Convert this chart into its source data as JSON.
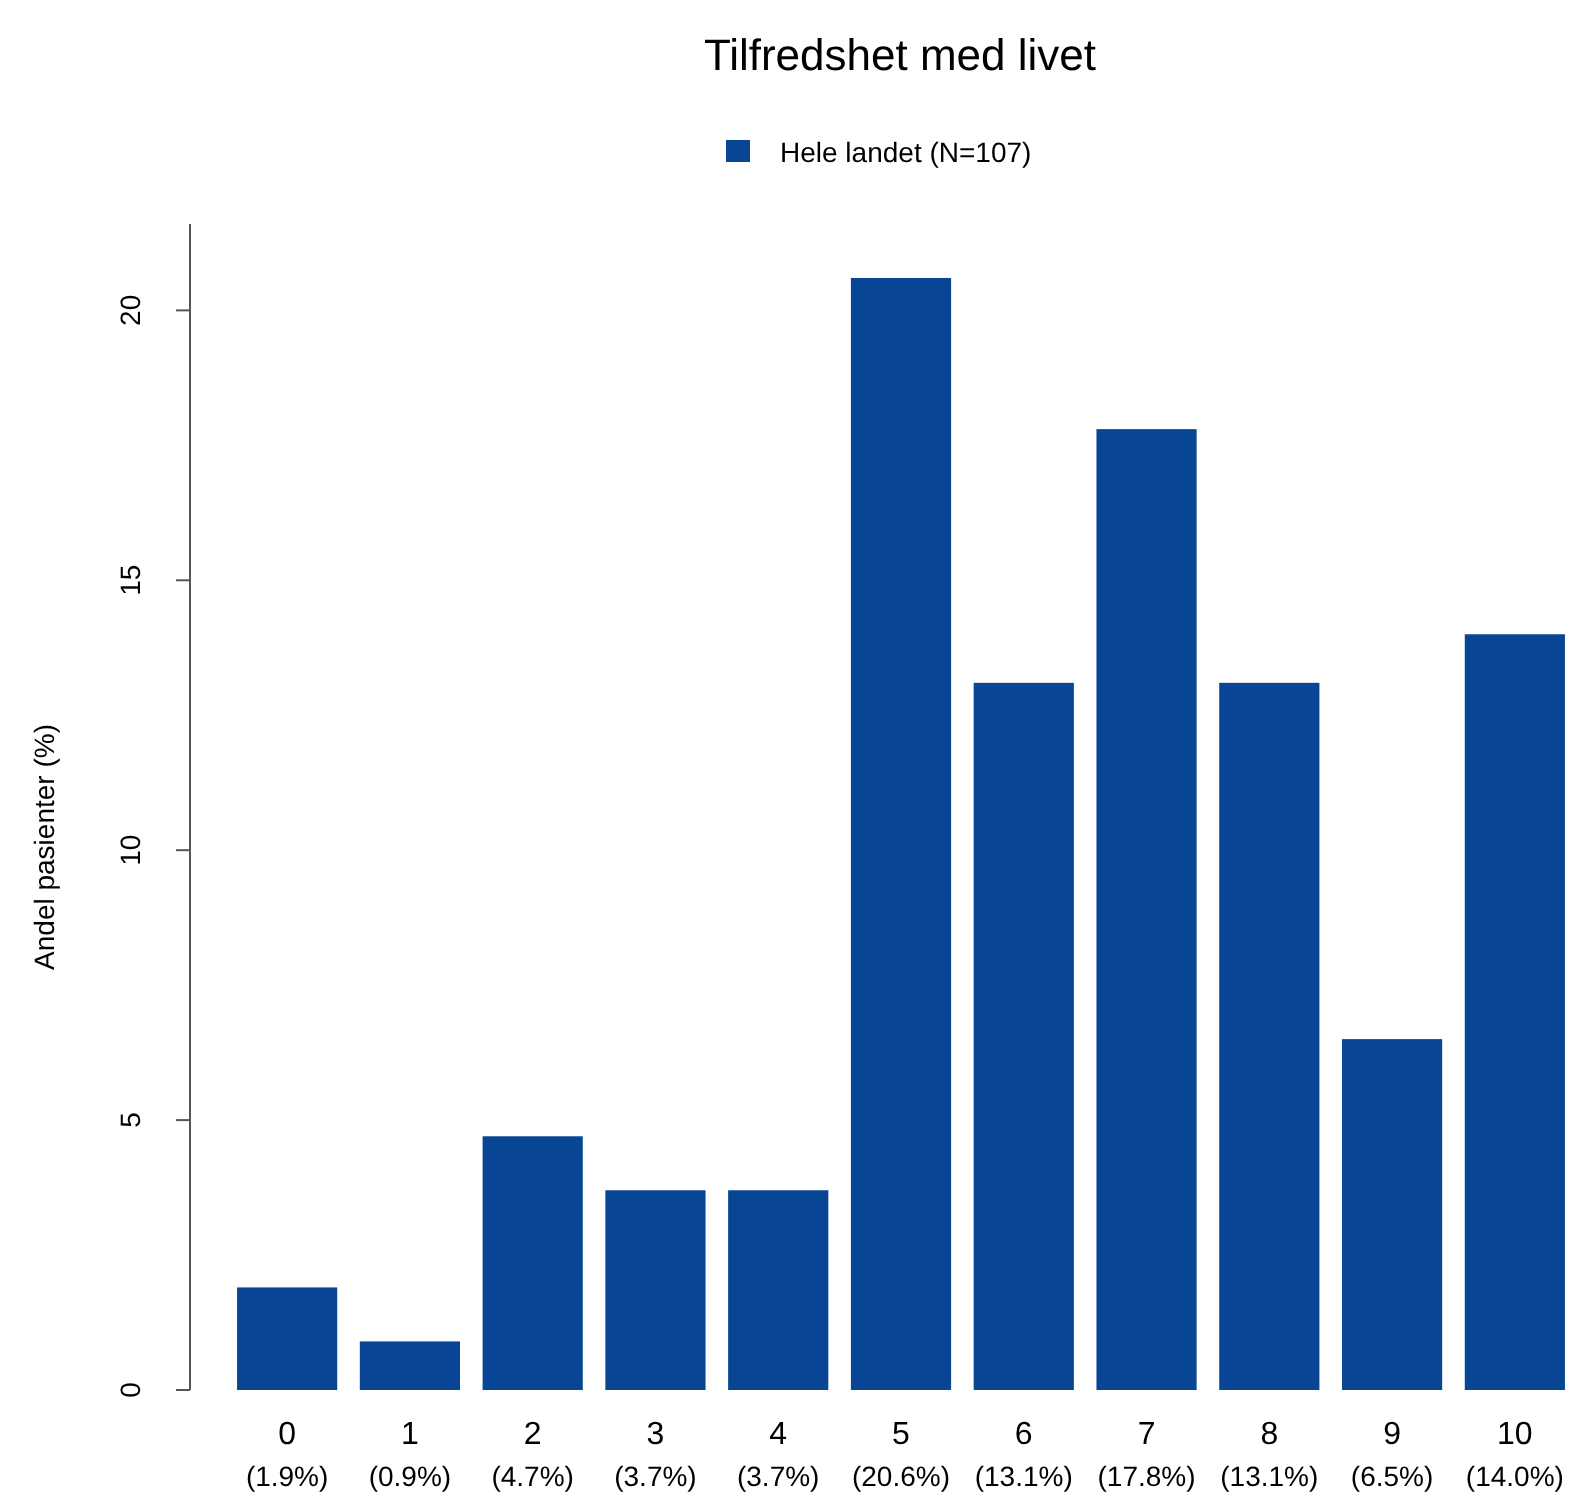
{
  "chart_data": {
    "type": "bar",
    "title": "Tilfredshet med livet",
    "ylabel": "Andel pasienter (%)",
    "categories": [
      "0",
      "1",
      "2",
      "3",
      "4",
      "5",
      "6",
      "7",
      "8",
      "9",
      "10"
    ],
    "series": [
      {
        "name": "Hele landet (N=107)",
        "color": "#084594",
        "values": [
          1.9,
          0.9,
          4.7,
          3.7,
          3.7,
          20.6,
          13.1,
          17.8,
          13.1,
          6.5,
          14.0
        ],
        "value_labels": [
          "(1.9%)",
          "(0.9%)",
          "(4.7%)",
          "(3.7%)",
          "(3.7%)",
          "(20.6%)",
          "(13.1%)",
          "(17.8%)",
          "(13.1%)",
          "(6.5%)",
          "(14.0%)"
        ]
      }
    ],
    "ylim": [
      0,
      21.6
    ],
    "yticks": [
      0,
      5,
      10,
      15,
      20
    ],
    "legend": "top",
    "grid": false
  }
}
